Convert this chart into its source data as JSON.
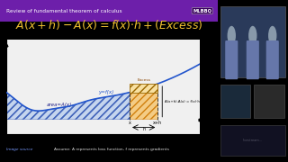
{
  "title_text": "Review of fundamental theorem of calculus",
  "title_logo": "MLBBQ",
  "bg_color": "#5c0f8b",
  "title_bar_color": "#6d1faa",
  "graph_bg": "#f0f0f0",
  "curve_color": "#2255cc",
  "fill_color": "#aabbee",
  "strip_fill_color": "#f5c87a",
  "strip_edge_color": "#cc7700",
  "label_area": "area=A(x)",
  "label_curve": "y=f(x)",
  "label_excess": "Excess",
  "label_strip": "A(x+h)-A(x) = f(x)·h",
  "label_x": "x",
  "label_xh": "x+h",
  "label_h": "h",
  "footer_text": "Assume: A represents loss function, f represents gradients",
  "footer_link": "Image source",
  "formula_color": "#f0c030",
  "footer_bg": "#4a0870",
  "slide_bg": "#000000",
  "cam_bg": "#1a1a1a",
  "cam_border": "#333333"
}
